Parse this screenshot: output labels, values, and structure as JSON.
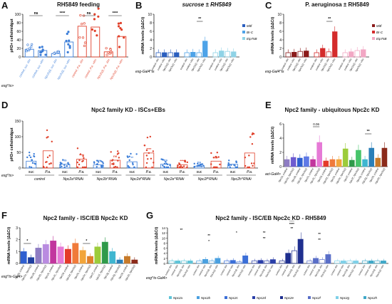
{
  "figure": {
    "panels": {
      "A": {
        "label": "A",
        "title": "RH5849 feeding",
        "ylabel": "pH3+ cells/midgut",
        "yticks": [
          "0",
          "20",
          "40",
          "60",
          "80",
          "100"
        ],
        "ylim": [
          0,
          100
        ],
        "sig": [
          "ns",
          "****",
          "ns",
          "****"
        ],
        "xlabels": [
          "control_suc -RH",
          "control_suc +RH",
          "Npc2c(i)_suc -RH",
          "Npc2c(i)_suc +RH",
          "control_P.a. -RH",
          "control_P.a. +RH",
          "Npc2c(i)_P.a. -RH",
          "Npc2c(i)_P.a. +RH"
        ],
        "genotype": "esg^ts>"
      },
      "B": {
        "label": "B",
        "title": "sucrose ± RH5849",
        "ylabel": "mRNA levels (ΔΔCt)",
        "yticks": [
          "0",
          "2",
          "4",
          "6",
          "8",
          "10"
        ],
        "ylim": [
          0,
          10
        ],
        "sig": [
          "**"
        ],
        "legend": [
          "Mitf",
          "Br-C",
          "Eip75B"
        ],
        "genotype": "esg-Gal4^ts",
        "xlabels": [
          "control -RH",
          "control +RH",
          "Npc2c(i) -RH",
          "Npc2c(i) +RH",
          "control -RH",
          "control +RH",
          "Npc2c(i) -RH",
          "Npc2c(i) +RH",
          "control -RH",
          "control +RH",
          "Npc2c(i) -RH",
          "Npc2c(i) +RH"
        ]
      },
      "C": {
        "label": "C",
        "title": "P. aeruginosa ± RH5849",
        "ylabel": "mRNA levels (ΔΔCt)",
        "yticks": [
          "0",
          "2",
          "4",
          "6",
          "8",
          "10"
        ],
        "ylim": [
          0,
          10
        ],
        "sig": [
          "**"
        ],
        "legend": [
          "Mitf",
          "Br-C",
          "Eip75B"
        ],
        "genotype": "esg-Gal4^ts",
        "xlabels": [
          "control -RH",
          "control +RH",
          "Npc2c(i) -RH",
          "Npc2c(i) +RH",
          "control -RH",
          "control +RH",
          "Npc2c(i) -RH",
          "Npc2c(i) +RH",
          "control -RH",
          "control +RH",
          "Npc2c(i) -RH",
          "Npc2c(i) +RH"
        ]
      },
      "D": {
        "label": "D",
        "title": "Npc2 family KD - ISCs+EBs",
        "ylabel": "pH3+ cells/midgut",
        "yticks": [
          "0",
          "50",
          "100",
          "150"
        ],
        "ylim": [
          0,
          150
        ],
        "sig": [
          "ns",
          "****",
          "****",
          "ns",
          "**",
          "****",
          "ns",
          "****",
          "ns",
          "ns"
        ],
        "sub": [
          "suc",
          "P.a."
        ],
        "groups": [
          "control",
          "Npc2a^RNAi",
          "Npc2b^RNAi",
          "Npc2d^RNAi",
          "Npc2e^RNAi",
          "Npc2f^RNAi",
          "Npc2h^RNAi"
        ],
        "genotype": "esg^ts>"
      },
      "E": {
        "label": "E",
        "title": "Npc2 family - ubiquitous Npc2c KD",
        "ylabel": "mRNA levels (ΔΔCt)",
        "yticks": [
          "0",
          "2",
          "4",
          "6"
        ],
        "ylim": [
          0,
          6
        ],
        "sig": [
          "0.06",
          "**"
        ],
        "genotype": "act-Gal4>",
        "xlabels": [
          "Npc2a_control",
          "Npc2a_Npc2c(i)",
          "Npc2b_control",
          "Npc2b_Npc2c(i)",
          "Npc2c_control",
          "Npc2c_Npc2c(i)",
          "Npc2d_control",
          "Npc2d_Npc2c(i)",
          "Npc2e_control",
          "Npc2e_Npc2c(i)",
          "Npc2f_control",
          "Npc2f_Npc2c(i)",
          "Npc2g_control",
          "Npc2g_Npc2c(i)",
          "Npc2h_control",
          "Npc2h_Npc2c(i)"
        ]
      },
      "F": {
        "label": "F",
        "title": "Npc2 family - ISC/EB Npc2c KD",
        "ylabel": "mRNA levels (ΔΔCt)",
        "yticks": [
          "0",
          "1",
          "2",
          "3"
        ],
        "ylim": [
          0,
          3
        ],
        "sig": [
          "*",
          "*"
        ],
        "genotype": "esg^ts-Gal4>",
        "xlabels": [
          "Npc2a_control",
          "Npc2a_Npc2c(i)",
          "Npc2b_control",
          "Npc2b_Npc2c(i)",
          "Npc2c_control",
          "Npc2c_Npc2c(i)",
          "Npc2d_control",
          "Npc2d_Npc2c(i)",
          "Npc2e_control",
          "Npc2e_Npc2c(i)",
          "Npc2f_control",
          "Npc2f_Npc2c(i)",
          "Npc2g_control",
          "Npc2g_Npc2c(i)",
          "Npc2h_control",
          "Npc2h_Npc2c(i)"
        ]
      },
      "G": {
        "label": "G",
        "title": "Npc2 family - ISC/EB Npc2c KD - RH5849",
        "ylabel": "mRNA levels (ΔΔCt)",
        "yticks": [
          "0",
          "2",
          "4",
          "6",
          "8",
          "10",
          "12",
          "14"
        ],
        "ylim": [
          0,
          14
        ],
        "sig": [
          "**",
          "**",
          "*",
          "*",
          "**",
          "**",
          "****",
          "**",
          "****",
          "**",
          "**"
        ],
        "genotype": "esg^ts-Gal4>",
        "legend": [
          "Npc2a",
          "Npc2b",
          "Npc2c",
          "Npc2d",
          "Npc2e",
          "Npc2f",
          "Npc2g",
          "Npc2h"
        ],
        "xlabels": [
          "control -RH",
          "control +RH",
          "Npc2c(i) -RH",
          "Npc2c(i) +RH"
        ]
      }
    }
  },
  "chart_data": [
    {
      "panel": "A",
      "type": "scatter",
      "title": "RH5849 feeding",
      "ylabel": "pH3+ cells/midgut",
      "ylim": [
        0,
        100
      ],
      "categories": [
        "control_suc -RH",
        "control_suc +RH",
        "Npc2c(i)_suc -RH",
        "Npc2c(i)_suc +RH",
        "control_P.a. -RH",
        "control_P.a. +RH",
        "Npc2c(i)_P.a. -RH",
        "Npc2c(i)_P.a. +RH"
      ],
      "values": [
        18,
        15,
        8,
        35,
        72,
        70,
        12,
        48
      ],
      "colors": [
        "#3b7dd8",
        "#3b7dd8",
        "#3b7dd8",
        "#3b7dd8",
        "#e0402a",
        "#e0402a",
        "#e0402a",
        "#e0402a"
      ],
      "hollow": [
        true,
        false,
        true,
        false,
        true,
        false,
        true,
        false
      ]
    },
    {
      "panel": "B",
      "type": "bar",
      "title": "sucrose ± RH5849",
      "ylabel": "mRNA levels (ΔΔCt)",
      "ylim": [
        0,
        10
      ],
      "series": [
        {
          "name": "Mitf",
          "color": "#2b5fbf",
          "values": [
            1,
            1,
            1,
            1
          ]
        },
        {
          "name": "Br-C",
          "color": "#4ea3e8",
          "values": [
            1,
            1.1,
            1,
            3.7
          ]
        },
        {
          "name": "Eip75B",
          "color": "#8fd3e6",
          "values": [
            1,
            1.4,
            1.3,
            1.2
          ]
        }
      ]
    },
    {
      "panel": "C",
      "type": "bar",
      "title": "P. aeruginosa ± RH5849",
      "ylabel": "mRNA levels (ΔΔCt)",
      "ylim": [
        0,
        10
      ],
      "series": [
        {
          "name": "Mitf",
          "color": "#8b1a1a",
          "values": [
            1,
            1.1,
            1.3,
            1.4
          ]
        },
        {
          "name": "Br-C",
          "color": "#d42b2b",
          "values": [
            1,
            2,
            1.2,
            5.9
          ]
        },
        {
          "name": "Eip75B",
          "color": "#f2a7c4",
          "values": [
            1,
            1.2,
            1.5,
            1.7
          ]
        }
      ]
    },
    {
      "panel": "D",
      "type": "scatter",
      "title": "Npc2 family KD - ISCs+EBs",
      "ylabel": "pH3+ cells/midgut",
      "ylim": [
        0,
        150
      ],
      "categories": [
        "control suc",
        "control P.a.",
        "Npc2a suc",
        "Npc2a P.a.",
        "Npc2b suc",
        "Npc2b P.a.",
        "Npc2d suc",
        "Npc2d P.a.",
        "Npc2e suc",
        "Npc2e P.a.",
        "Npc2f suc",
        "Npc2f P.a.",
        "Npc2h suc",
        "Npc2h P.a."
      ],
      "values": [
        22,
        55,
        12,
        28,
        10,
        25,
        20,
        48,
        12,
        10,
        6,
        22,
        12,
        48
      ],
      "colors": [
        "#3b7dd8",
        "#e0402a",
        "#3b7dd8",
        "#e0402a",
        "#3b7dd8",
        "#e0402a",
        "#3b7dd8",
        "#e0402a",
        "#3b7dd8",
        "#e0402a",
        "#3b7dd8",
        "#e0402a",
        "#3b7dd8",
        "#e0402a"
      ]
    },
    {
      "panel": "E",
      "type": "bar",
      "title": "Npc2 family - ubiquitous Npc2c KD",
      "ylabel": "mRNA levels (ΔΔCt)",
      "ylim": [
        0,
        6
      ],
      "values": [
        1,
        1.3,
        1.2,
        1.4,
        1,
        3.4,
        0.8,
        1,
        1,
        2.5,
        0.9,
        2.3,
        1,
        2.6,
        1.2,
        2.6
      ],
      "colors": [
        "#8e7cc3",
        "#6d5bd0",
        "#2f5fd0",
        "#5e79e6",
        "#c2369e",
        "#e67ad6",
        "#e43a2a",
        "#f07a3a",
        "#f2a53a",
        "#9ccc3a",
        "#2f9a4a",
        "#47c46a",
        "#3fb6d0",
        "#2a7fb8",
        "#c77a2a",
        "#8b2a1a"
      ]
    },
    {
      "panel": "F",
      "type": "bar",
      "title": "Npc2 family - ISC/EB Npc2c KD",
      "ylabel": "mRNA levels (ΔΔCt)",
      "ylim": [
        0,
        3
      ],
      "values": [
        1,
        0.5,
        1.3,
        1.6,
        1.9,
        1.4,
        1.2,
        1.7,
        1.1,
        0.6,
        1.4,
        1.8,
        1,
        0.3,
        0.6,
        0.3
      ],
      "colors": [
        "#2f5fd0",
        "#1f3fa0",
        "#8e7cc3",
        "#b98be0",
        "#c2369e",
        "#e67ad6",
        "#e43a2a",
        "#f07a3a",
        "#f2a53a",
        "#e0802a",
        "#9ccc3a",
        "#2f9a4a",
        "#3fb6d0",
        "#2a7fb8",
        "#c77a2a",
        "#8b2a1a"
      ]
    },
    {
      "panel": "G",
      "type": "bar",
      "title": "Npc2 family - ISC/EB Npc2c KD - RH5849",
      "ylabel": "mRNA levels (ΔΔCt)",
      "ylim": [
        0,
        14
      ],
      "series": [
        {
          "name": "Npc2a",
          "color": "#5ec4d8",
          "values": [
            1,
            1,
            1,
            1
          ]
        },
        {
          "name": "Npc2b",
          "color": "#4aa0e0",
          "values": [
            1,
            1.6,
            1,
            2
          ]
        },
        {
          "name": "Npc2c",
          "color": "#3b6fd8",
          "values": [
            1,
            1.2,
            0.6,
            3
          ]
        },
        {
          "name": "Npc2d",
          "color": "#2a3fa8",
          "values": [
            1,
            1.2,
            1,
            1.5
          ]
        },
        {
          "name": "Npc2e",
          "color": "#1f2f8f",
          "values": [
            1,
            4,
            5,
            9.5
          ]
        },
        {
          "name": "Npc2f",
          "color": "#5a6fc8",
          "values": [
            1,
            2,
            1.5,
            3.5
          ]
        },
        {
          "name": "Npc2g",
          "color": "#7fd0e8",
          "values": [
            1,
            1,
            1,
            1
          ]
        },
        {
          "name": "Npc2h",
          "color": "#3fa8c8",
          "values": [
            1,
            1,
            1,
            1
          ]
        }
      ]
    }
  ]
}
